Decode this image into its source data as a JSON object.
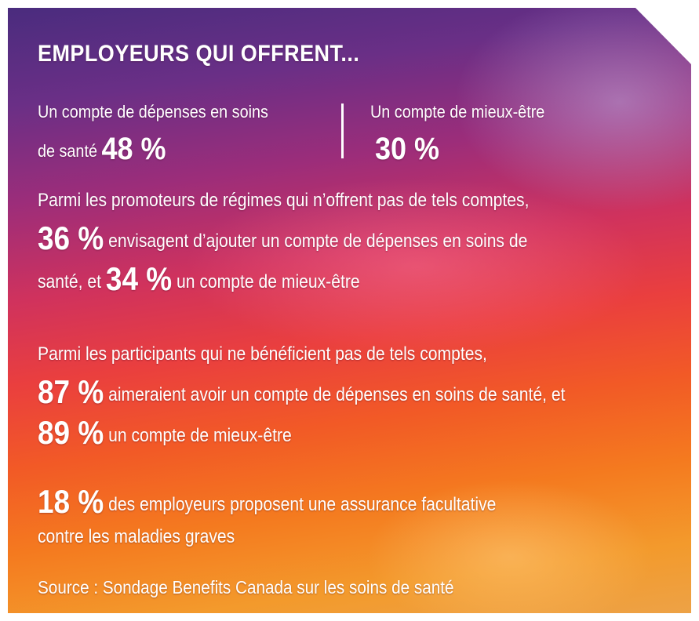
{
  "title": "EMPLOYEURS QUI OFFRENT...",
  "stats": {
    "left": {
      "line1": "Un compte de dépenses en soins",
      "line2": "de santé",
      "value": "48 %"
    },
    "right": {
      "line1": "Un compte de mieux-être",
      "value": "30 %"
    }
  },
  "sponsors": {
    "intro": "Parmi les promoteurs de régimes qui n’offrent pas de tels comptes,",
    "value1": "36 %",
    "text1": "envisagent d’ajouter un compte de dépenses en soins de",
    "text1b": "santé, et",
    "value2": "34 %",
    "text2": "un compte de mieux-être"
  },
  "participants": {
    "intro": "Parmi les participants qui ne bénéficient pas de tels comptes,",
    "value1": "87 %",
    "text1": "aimeraient avoir un compte de dépenses en soins de santé, et",
    "value2": "89 %",
    "text2": "un compte de mieux-être"
  },
  "critical": {
    "value": "18 %",
    "text1": "des employeurs proposent une assurance facultative",
    "text2": "contre les maladies graves"
  },
  "source": "Source : Sondage Benefits Canada sur les soins de santé"
}
